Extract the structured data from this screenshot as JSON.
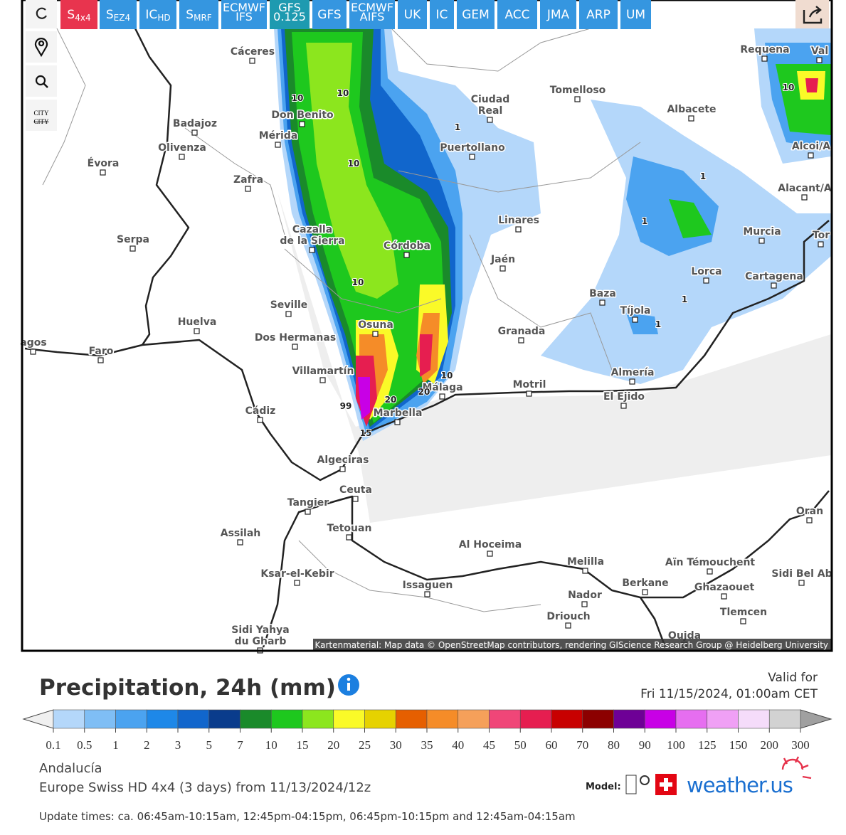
{
  "toolbar": {
    "models": [
      {
        "main": "S",
        "sub": "4x4"
      },
      {
        "main": "S",
        "sub": "EZ4"
      },
      {
        "main": "IC",
        "sub": "HD"
      },
      {
        "main": "S",
        "sub": "MRF"
      },
      {
        "lines": [
          "ECMWF",
          "IFS"
        ]
      },
      {
        "lines": [
          "GFS",
          "0.125"
        ]
      },
      {
        "main": "GFS"
      },
      {
        "lines": [
          "ECMWF",
          "AIFS"
        ]
      },
      {
        "main": "UK"
      },
      {
        "main": "IC"
      },
      {
        "main": "GEM"
      },
      {
        "main": "ACC"
      },
      {
        "main": "JMA"
      },
      {
        "main": "ARP"
      },
      {
        "main": "UM"
      }
    ],
    "active": 0,
    "city_toggle": [
      "CITY",
      "CITY"
    ]
  },
  "map": {
    "cities": [
      [
        "Cáceres"
      ],
      [
        "Requena"
      ],
      [
        "Val"
      ],
      [
        "Ciudad",
        "Real"
      ],
      [
        "Tomelloso"
      ],
      [
        "Don Benito"
      ],
      [
        "Albacete"
      ],
      [
        "Badajoz"
      ],
      [
        "Mérida"
      ],
      [
        "Puertollano"
      ],
      [
        "Olivenza"
      ],
      [
        "Alcoi/A"
      ],
      [
        "Évora"
      ],
      [
        "Zafra"
      ],
      [
        "Alacant/A"
      ],
      [
        "Linares"
      ],
      [
        "Cazalla",
        "de la Sierra"
      ],
      [
        "Murcia"
      ],
      [
        "Serpa"
      ],
      [
        "Tor"
      ],
      [
        "Córdoba"
      ],
      [
        "Jaén"
      ],
      [
        "Lorca"
      ],
      [
        "Cartagena"
      ],
      [
        "Baza"
      ],
      [
        "Seville"
      ],
      [
        "Tíjola"
      ],
      [
        "Huelva"
      ],
      [
        "Osuna"
      ],
      [
        "Granada"
      ],
      [
        "Dos Hermanas"
      ],
      [
        "Faro"
      ],
      [
        "agos"
      ],
      [
        "Villamartín"
      ],
      [
        "Almería"
      ],
      [
        "Motril"
      ],
      [
        "Málaga"
      ],
      [
        "El Ejido"
      ],
      [
        "Marbella"
      ],
      [
        "Cádiz"
      ],
      [
        "Algeciras"
      ],
      [
        "Ceuta"
      ],
      [
        "Tangier"
      ],
      [
        "Oran"
      ],
      [
        "Assilah"
      ],
      [
        "Tetouan"
      ],
      [
        "Al Hoceima"
      ],
      [
        "Melilla"
      ],
      [
        "Aïn Témouchent"
      ],
      [
        "Sidi Bel Ab"
      ],
      [
        "Ksar-el-Kebir"
      ],
      [
        "Issaguen"
      ],
      [
        "Berkane"
      ],
      [
        "Ghazaouet"
      ],
      [
        "Nador"
      ],
      [
        "Tlemcen"
      ],
      [
        "Driouch"
      ],
      [
        "Sidi Yahya",
        "du Gharb"
      ],
      [
        "Oujda"
      ]
    ],
    "contour_labels": [
      "10",
      "10",
      "10",
      "1",
      "10",
      "1",
      "1",
      "1",
      "1",
      "10",
      "20",
      "20",
      "10",
      "15",
      "99"
    ],
    "attribution": "Kartenmaterial: Map data © OpenStreetMap contributors, rendering GIScience Research Group @ Heidelberg University"
  },
  "panel": {
    "title": "Precipitation, 24h (mm)",
    "valid_label": "Valid for",
    "valid_time": "Fri 11/15/2024, 01:00am CET",
    "legend": {
      "ticks": [
        0.1,
        0.5,
        1,
        2,
        3,
        5,
        7,
        10,
        15,
        20,
        25,
        30,
        35,
        40,
        45,
        50,
        60,
        70,
        80,
        90,
        100,
        125,
        150,
        200,
        300
      ],
      "colors": [
        "#b4d7fa",
        "#7fbef5",
        "#4ba3f0",
        "#1e88e8",
        "#1166cc",
        "#0a3c8c",
        "#1a8a2a",
        "#1ec81e",
        "#8ce61e",
        "#fafa28",
        "#e6d200",
        "#e65f00",
        "#f58c28",
        "#f5a05a",
        "#f04678",
        "#e61e50",
        "#c80000",
        "#8c0000",
        "#6e0096",
        "#c800e6",
        "#e66ef0",
        "#f0a0f5",
        "#f5dcfa",
        "#d2d2d2"
      ],
      "low_color": "#f0f0f0",
      "high_color": "#a0a0a0"
    },
    "region": "Andalucía",
    "model_run": "Europe Swiss HD 4x4 (3 days) from 11/13/2024/12z",
    "model_label": "Model:",
    "brand": "weather.us",
    "update_times": "Update times: ca. 06:45am-10:15am, 12:45pm-04:15pm, 06:45pm-10:15pm and 12:45am-04:15am"
  }
}
